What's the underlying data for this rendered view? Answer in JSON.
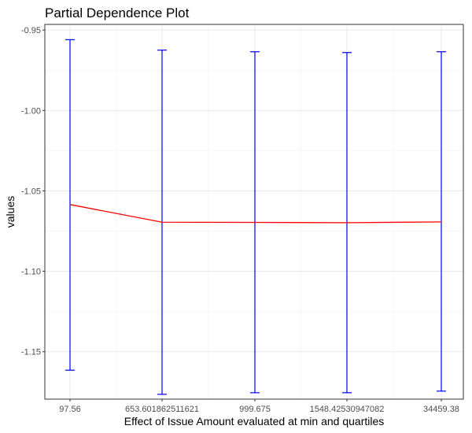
{
  "chart_data": {
    "type": "line",
    "title": "Partial Dependence Plot",
    "xlabel": "Effect of Issue Amount evaluated at min and quartiles",
    "ylabel": "values",
    "categories": [
      "97.56",
      "653.601862511621",
      "999.675",
      "1548.42530947082",
      "34459.38"
    ],
    "series": [
      {
        "line_color": "#ff0000",
        "error_color": "#0000ff",
        "values": [
          -1.0585,
          -1.0695,
          -1.0696,
          -1.0698,
          -1.0693
        ],
        "upper": [
          -0.956,
          -0.9625,
          -0.9635,
          -0.964,
          -0.9635
        ],
        "lower": [
          -1.1615,
          -1.1765,
          -1.1755,
          -1.1755,
          -1.1745
        ]
      }
    ],
    "ylim": [
      -1.1795,
      -0.9465
    ],
    "yticks": [
      -1.15,
      -1.1,
      -1.05,
      -1.0,
      -0.95
    ],
    "ytick_labels": [
      "-1.15",
      "-1.10",
      "-1.05",
      "-1.00",
      "-0.95"
    ],
    "grid": true,
    "legend": "none"
  }
}
